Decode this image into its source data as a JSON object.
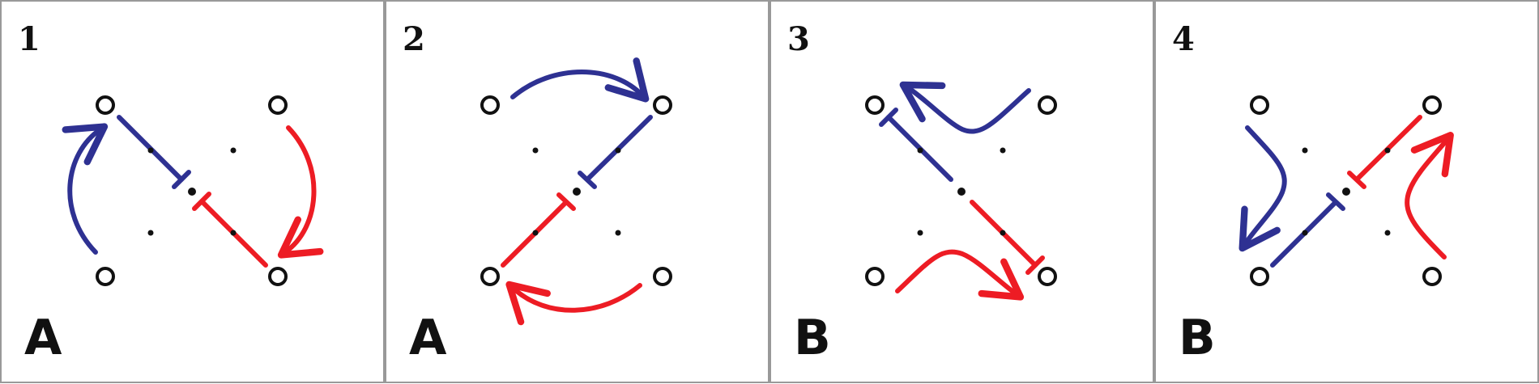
{
  "colors": {
    "blue": "#2e3192",
    "red": "#ed1c24",
    "ink": "#111111",
    "border": "#999999",
    "background": "#ffffff"
  },
  "panels": [
    {
      "number": "1",
      "letter": "A"
    },
    {
      "number": "2",
      "letter": "A"
    },
    {
      "number": "3",
      "letter": "B"
    },
    {
      "number": "4",
      "letter": "B"
    }
  ]
}
